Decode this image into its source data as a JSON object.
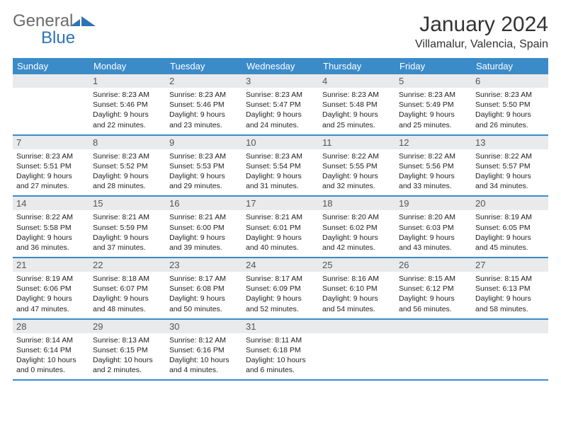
{
  "logo": {
    "t1": "General",
    "t2": "Blue"
  },
  "title": "January 2024",
  "location": "Villamalur, Valencia, Spain",
  "headers": [
    "Sunday",
    "Monday",
    "Tuesday",
    "Wednesday",
    "Thursday",
    "Friday",
    "Saturday"
  ],
  "colors": {
    "header_bg": "#3b8bc9",
    "header_fg": "#ffffff",
    "daynum_bg": "#e9eaec",
    "rule": "#3b8bc9",
    "logo_gray": "#6b6b6b",
    "logo_blue": "#2e74b5"
  },
  "weeks": [
    [
      {
        "n": "",
        "sr": "",
        "ss": "",
        "d1": "",
        "d2": ""
      },
      {
        "n": "1",
        "sr": "Sunrise: 8:23 AM",
        "ss": "Sunset: 5:46 PM",
        "d1": "Daylight: 9 hours",
        "d2": "and 22 minutes."
      },
      {
        "n": "2",
        "sr": "Sunrise: 8:23 AM",
        "ss": "Sunset: 5:46 PM",
        "d1": "Daylight: 9 hours",
        "d2": "and 23 minutes."
      },
      {
        "n": "3",
        "sr": "Sunrise: 8:23 AM",
        "ss": "Sunset: 5:47 PM",
        "d1": "Daylight: 9 hours",
        "d2": "and 24 minutes."
      },
      {
        "n": "4",
        "sr": "Sunrise: 8:23 AM",
        "ss": "Sunset: 5:48 PM",
        "d1": "Daylight: 9 hours",
        "d2": "and 25 minutes."
      },
      {
        "n": "5",
        "sr": "Sunrise: 8:23 AM",
        "ss": "Sunset: 5:49 PM",
        "d1": "Daylight: 9 hours",
        "d2": "and 25 minutes."
      },
      {
        "n": "6",
        "sr": "Sunrise: 8:23 AM",
        "ss": "Sunset: 5:50 PM",
        "d1": "Daylight: 9 hours",
        "d2": "and 26 minutes."
      }
    ],
    [
      {
        "n": "7",
        "sr": "Sunrise: 8:23 AM",
        "ss": "Sunset: 5:51 PM",
        "d1": "Daylight: 9 hours",
        "d2": "and 27 minutes."
      },
      {
        "n": "8",
        "sr": "Sunrise: 8:23 AM",
        "ss": "Sunset: 5:52 PM",
        "d1": "Daylight: 9 hours",
        "d2": "and 28 minutes."
      },
      {
        "n": "9",
        "sr": "Sunrise: 8:23 AM",
        "ss": "Sunset: 5:53 PM",
        "d1": "Daylight: 9 hours",
        "d2": "and 29 minutes."
      },
      {
        "n": "10",
        "sr": "Sunrise: 8:23 AM",
        "ss": "Sunset: 5:54 PM",
        "d1": "Daylight: 9 hours",
        "d2": "and 31 minutes."
      },
      {
        "n": "11",
        "sr": "Sunrise: 8:22 AM",
        "ss": "Sunset: 5:55 PM",
        "d1": "Daylight: 9 hours",
        "d2": "and 32 minutes."
      },
      {
        "n": "12",
        "sr": "Sunrise: 8:22 AM",
        "ss": "Sunset: 5:56 PM",
        "d1": "Daylight: 9 hours",
        "d2": "and 33 minutes."
      },
      {
        "n": "13",
        "sr": "Sunrise: 8:22 AM",
        "ss": "Sunset: 5:57 PM",
        "d1": "Daylight: 9 hours",
        "d2": "and 34 minutes."
      }
    ],
    [
      {
        "n": "14",
        "sr": "Sunrise: 8:22 AM",
        "ss": "Sunset: 5:58 PM",
        "d1": "Daylight: 9 hours",
        "d2": "and 36 minutes."
      },
      {
        "n": "15",
        "sr": "Sunrise: 8:21 AM",
        "ss": "Sunset: 5:59 PM",
        "d1": "Daylight: 9 hours",
        "d2": "and 37 minutes."
      },
      {
        "n": "16",
        "sr": "Sunrise: 8:21 AM",
        "ss": "Sunset: 6:00 PM",
        "d1": "Daylight: 9 hours",
        "d2": "and 39 minutes."
      },
      {
        "n": "17",
        "sr": "Sunrise: 8:21 AM",
        "ss": "Sunset: 6:01 PM",
        "d1": "Daylight: 9 hours",
        "d2": "and 40 minutes."
      },
      {
        "n": "18",
        "sr": "Sunrise: 8:20 AM",
        "ss": "Sunset: 6:02 PM",
        "d1": "Daylight: 9 hours",
        "d2": "and 42 minutes."
      },
      {
        "n": "19",
        "sr": "Sunrise: 8:20 AM",
        "ss": "Sunset: 6:03 PM",
        "d1": "Daylight: 9 hours",
        "d2": "and 43 minutes."
      },
      {
        "n": "20",
        "sr": "Sunrise: 8:19 AM",
        "ss": "Sunset: 6:05 PM",
        "d1": "Daylight: 9 hours",
        "d2": "and 45 minutes."
      }
    ],
    [
      {
        "n": "21",
        "sr": "Sunrise: 8:19 AM",
        "ss": "Sunset: 6:06 PM",
        "d1": "Daylight: 9 hours",
        "d2": "and 47 minutes."
      },
      {
        "n": "22",
        "sr": "Sunrise: 8:18 AM",
        "ss": "Sunset: 6:07 PM",
        "d1": "Daylight: 9 hours",
        "d2": "and 48 minutes."
      },
      {
        "n": "23",
        "sr": "Sunrise: 8:17 AM",
        "ss": "Sunset: 6:08 PM",
        "d1": "Daylight: 9 hours",
        "d2": "and 50 minutes."
      },
      {
        "n": "24",
        "sr": "Sunrise: 8:17 AM",
        "ss": "Sunset: 6:09 PM",
        "d1": "Daylight: 9 hours",
        "d2": "and 52 minutes."
      },
      {
        "n": "25",
        "sr": "Sunrise: 8:16 AM",
        "ss": "Sunset: 6:10 PM",
        "d1": "Daylight: 9 hours",
        "d2": "and 54 minutes."
      },
      {
        "n": "26",
        "sr": "Sunrise: 8:15 AM",
        "ss": "Sunset: 6:12 PM",
        "d1": "Daylight: 9 hours",
        "d2": "and 56 minutes."
      },
      {
        "n": "27",
        "sr": "Sunrise: 8:15 AM",
        "ss": "Sunset: 6:13 PM",
        "d1": "Daylight: 9 hours",
        "d2": "and 58 minutes."
      }
    ],
    [
      {
        "n": "28",
        "sr": "Sunrise: 8:14 AM",
        "ss": "Sunset: 6:14 PM",
        "d1": "Daylight: 10 hours",
        "d2": "and 0 minutes."
      },
      {
        "n": "29",
        "sr": "Sunrise: 8:13 AM",
        "ss": "Sunset: 6:15 PM",
        "d1": "Daylight: 10 hours",
        "d2": "and 2 minutes."
      },
      {
        "n": "30",
        "sr": "Sunrise: 8:12 AM",
        "ss": "Sunset: 6:16 PM",
        "d1": "Daylight: 10 hours",
        "d2": "and 4 minutes."
      },
      {
        "n": "31",
        "sr": "Sunrise: 8:11 AM",
        "ss": "Sunset: 6:18 PM",
        "d1": "Daylight: 10 hours",
        "d2": "and 6 minutes."
      },
      {
        "n": "",
        "sr": "",
        "ss": "",
        "d1": "",
        "d2": ""
      },
      {
        "n": "",
        "sr": "",
        "ss": "",
        "d1": "",
        "d2": ""
      },
      {
        "n": "",
        "sr": "",
        "ss": "",
        "d1": "",
        "d2": ""
      }
    ]
  ]
}
